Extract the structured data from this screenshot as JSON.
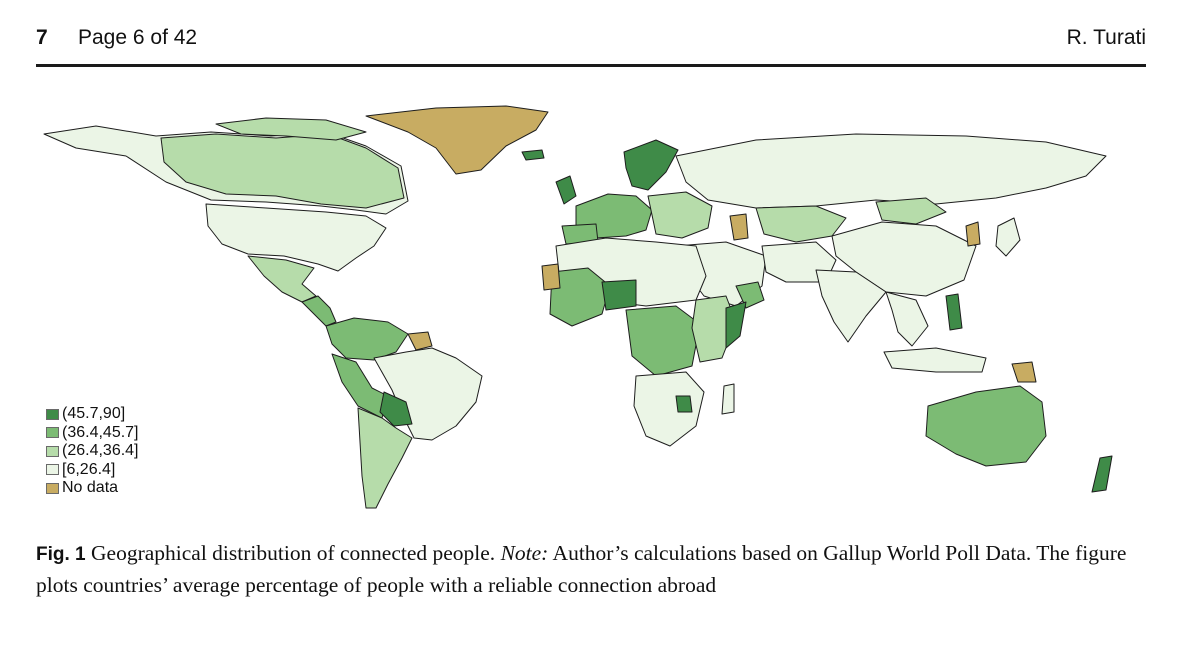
{
  "header": {
    "page_number": "7",
    "page_of": "Page 6 of 42",
    "author": "R. Turati"
  },
  "figure": {
    "legend": [
      {
        "label": "(45.7,90]",
        "color": "#3f8b48"
      },
      {
        "label": "(36.4,45.7]",
        "color": "#7cbb74"
      },
      {
        "label": "(26.4,36.4]",
        "color": "#b6dcaa"
      },
      {
        "label": "[6,26.4]",
        "color": "#ebf5e6"
      },
      {
        "label": "No data",
        "color": "#c8ac62"
      }
    ]
  },
  "caption": {
    "label": "Fig. 1",
    "text_1": "Geographical distribution of connected people.",
    "note_label": "Note:",
    "text_2": "Author’s calculations based on Gallup World Poll Data. The figure plots countries’ average percentage of people with a reliable connection abroad"
  }
}
